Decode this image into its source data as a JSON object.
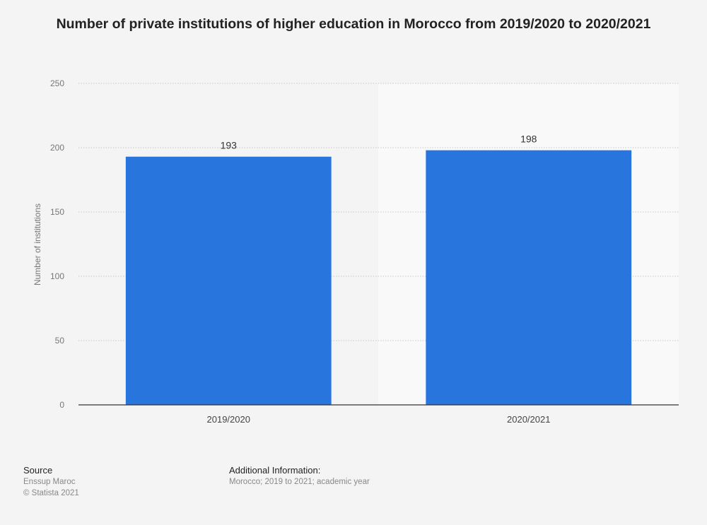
{
  "chart_data": {
    "type": "bar",
    "title": "Number of private institutions of higher education in Morocco from 2019/2020 to 2020/2021",
    "categories": [
      "2019/2020",
      "2020/2021"
    ],
    "values": [
      193,
      198
    ],
    "data_labels": [
      "193",
      "198"
    ],
    "xlabel": "",
    "ylabel": "Number of institutions",
    "ylim": [
      0,
      250
    ],
    "yticks": [
      0,
      50,
      100,
      150,
      200,
      250
    ],
    "grid": true,
    "legend": "none",
    "bar_color": "#2875dd"
  },
  "footer": {
    "source_heading": "Source",
    "source_name": "Enssup Maroc",
    "copyright": "© Statista 2021",
    "info_heading": "Additional Information:",
    "info_text": "Morocco; 2019 to 2021; academic year"
  }
}
